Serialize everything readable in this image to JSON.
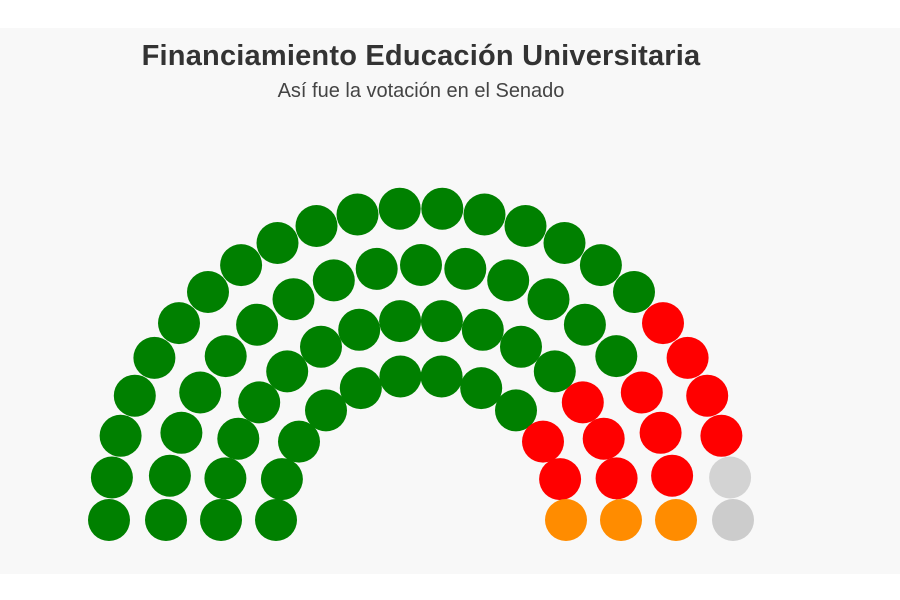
{
  "title": "Financiamiento Educación Universitaria",
  "subtitle": "Así fue la votación en el Senado",
  "chart_data": {
    "type": "parliament",
    "total_seats": 71,
    "series": [
      {
        "value": 54,
        "color": "#008000"
      },
      {
        "value": 12,
        "color": "#ff0000"
      },
      {
        "value": 1,
        "color": "#d3d3d3"
      },
      {
        "value": 3,
        "color": "#ff8c00"
      }
    ],
    "order": [
      "#008000",
      "#ff0000",
      "#d3d3d3",
      "#ff8c00"
    ]
  }
}
